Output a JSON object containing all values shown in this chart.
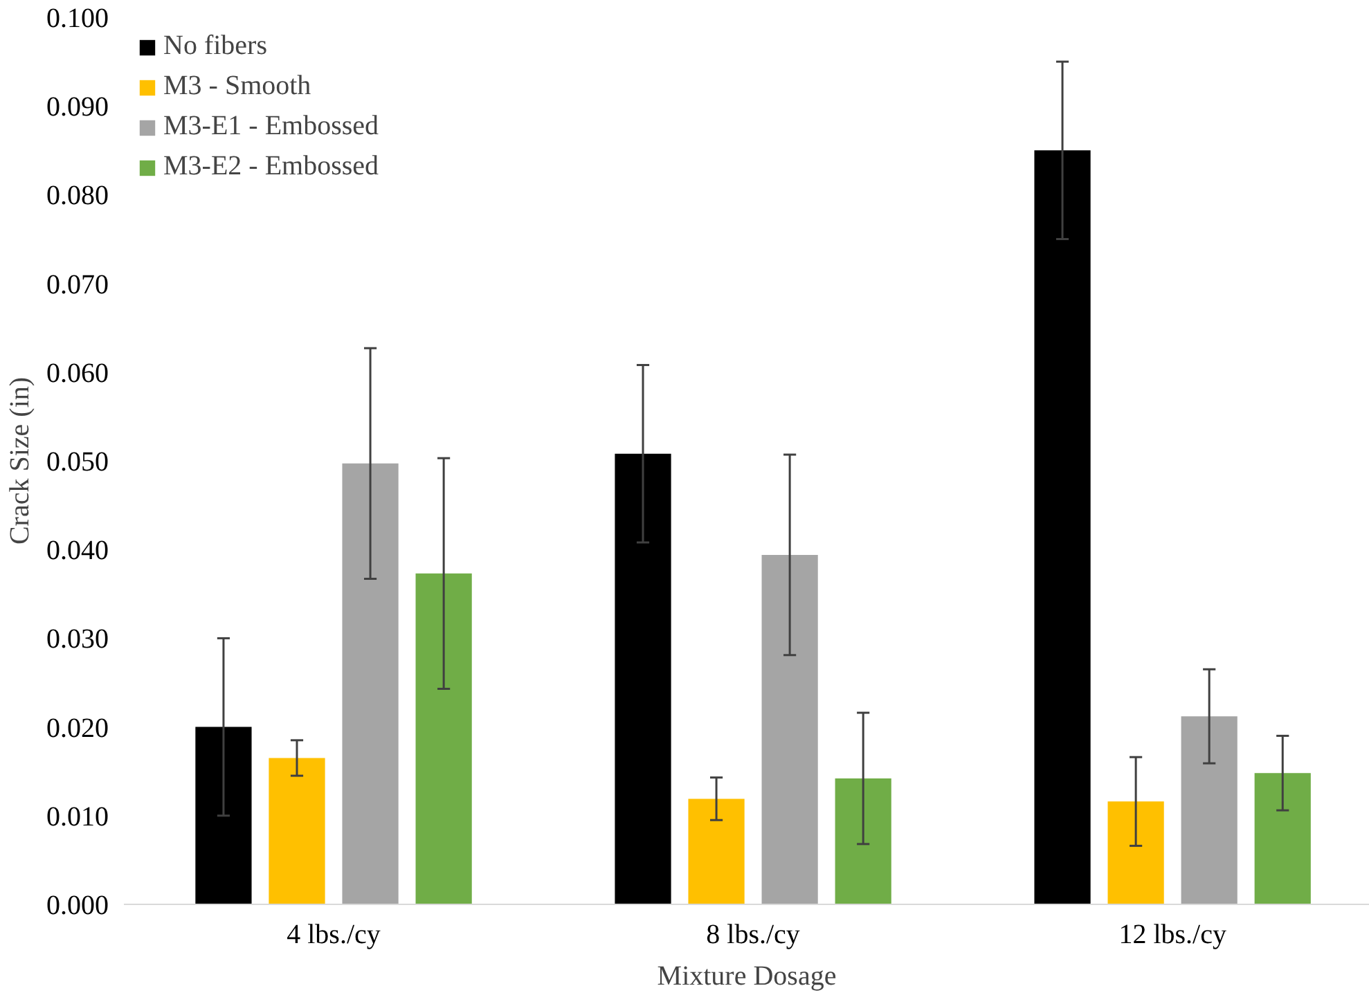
{
  "chart_data": {
    "type": "bar",
    "xlabel": "Mixture Dosage",
    "ylabel": "Crack Size (in)",
    "categories": [
      "4 lbs./cy",
      "8 lbs./cy",
      "12 lbs./cy"
    ],
    "series": [
      {
        "name": "No fibers",
        "color": "#000000",
        "values": [
          0.02,
          0.0508,
          0.085
        ],
        "errors": [
          0.01,
          0.01,
          0.01
        ]
      },
      {
        "name": "M3 - Smooth",
        "color": "#ffc000",
        "values": [
          0.0165,
          0.0119,
          0.0116
        ],
        "errors": [
          0.002,
          0.0024,
          0.005
        ]
      },
      {
        "name": "M3-E1 - Embossed",
        "color": "#a5a5a5",
        "values": [
          0.0497,
          0.0394,
          0.0212
        ],
        "errors": [
          0.013,
          0.0113,
          0.0053
        ]
      },
      {
        "name": "M3-E2 - Embossed",
        "color": "#70ad47",
        "values": [
          0.0373,
          0.0142,
          0.0148
        ],
        "errors": [
          0.013,
          0.0074,
          0.0042
        ]
      }
    ],
    "ylim": [
      0,
      0.1
    ],
    "yticks": [
      {
        "value": 0,
        "label": "0.000"
      },
      {
        "value": 0.01,
        "label": "0.010"
      },
      {
        "value": 0.02,
        "label": "0.020"
      },
      {
        "value": 0.03,
        "label": "0.030"
      },
      {
        "value": 0.04,
        "label": "0.040"
      },
      {
        "value": 0.05,
        "label": "0.050"
      },
      {
        "value": 0.06,
        "label": "0.060"
      },
      {
        "value": 0.07,
        "label": "0.070"
      },
      {
        "value": 0.08,
        "label": "0.080"
      },
      {
        "value": 0.09,
        "label": "0.090"
      },
      {
        "value": 0.1,
        "label": "0.100"
      }
    ],
    "grid": false,
    "legend": "top left"
  }
}
